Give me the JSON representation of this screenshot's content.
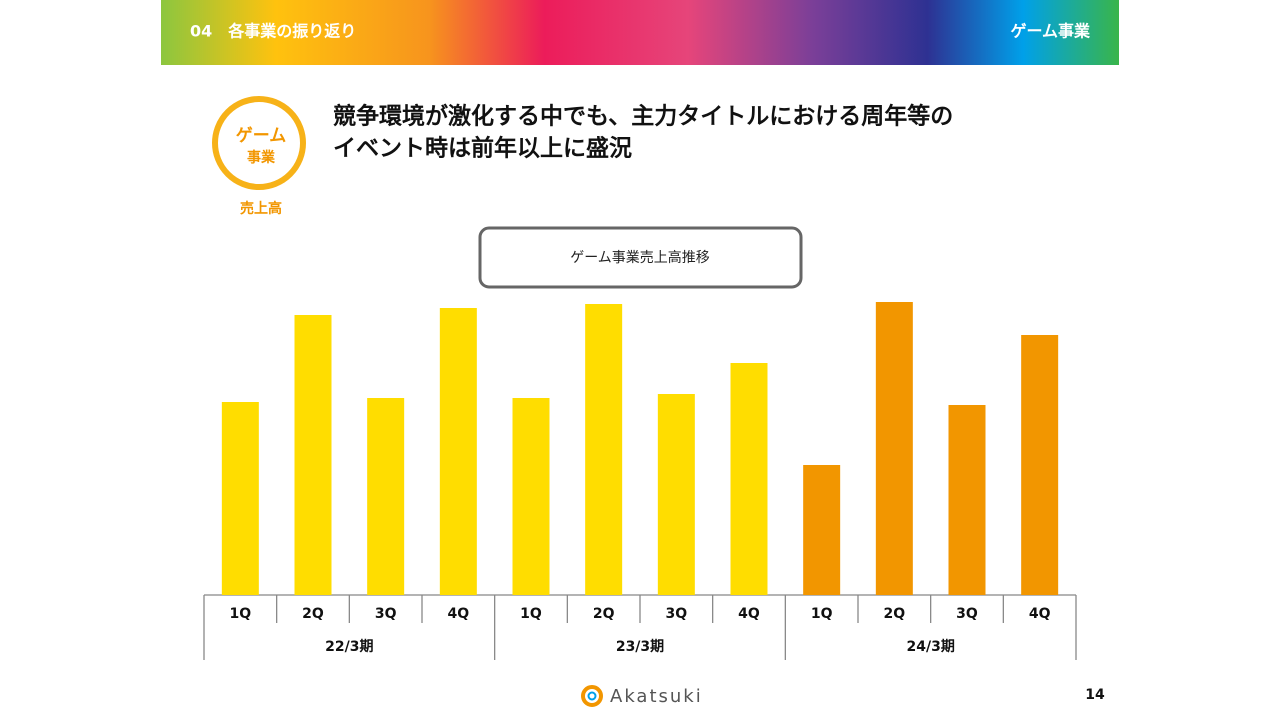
{
  "header": {
    "section": "04　各事業の振り返り",
    "segment": "ゲーム事業"
  },
  "badge": {
    "line1": "ゲーム",
    "line2": "事業",
    "caption": "売上高"
  },
  "headline": {
    "line1": "競争環境が激化する中でも、主力タイトルにおける周年等の",
    "line2": "イベント時は前年以上に盛況"
  },
  "chart_data": {
    "type": "bar",
    "title": "ゲーム事業売上高推移",
    "ylim": [
      0,
      300
    ],
    "series": [
      {
        "name": "22/3期",
        "color": "#ffdd00",
        "categories": [
          "1Q",
          "2Q",
          "3Q",
          "4Q"
        ],
        "values": [
          193,
          280,
          197,
          287
        ]
      },
      {
        "name": "23/3期",
        "color": "#ffdd00",
        "categories": [
          "1Q",
          "2Q",
          "3Q",
          "4Q"
        ],
        "values": [
          197,
          291,
          201,
          232
        ]
      },
      {
        "name": "24/3期",
        "color": "#f29600",
        "categories": [
          "1Q",
          "2Q",
          "3Q",
          "4Q"
        ],
        "values": [
          130,
          293,
          190,
          260
        ]
      }
    ]
  },
  "footer": {
    "logo": "Akatsuki",
    "page": "14"
  }
}
